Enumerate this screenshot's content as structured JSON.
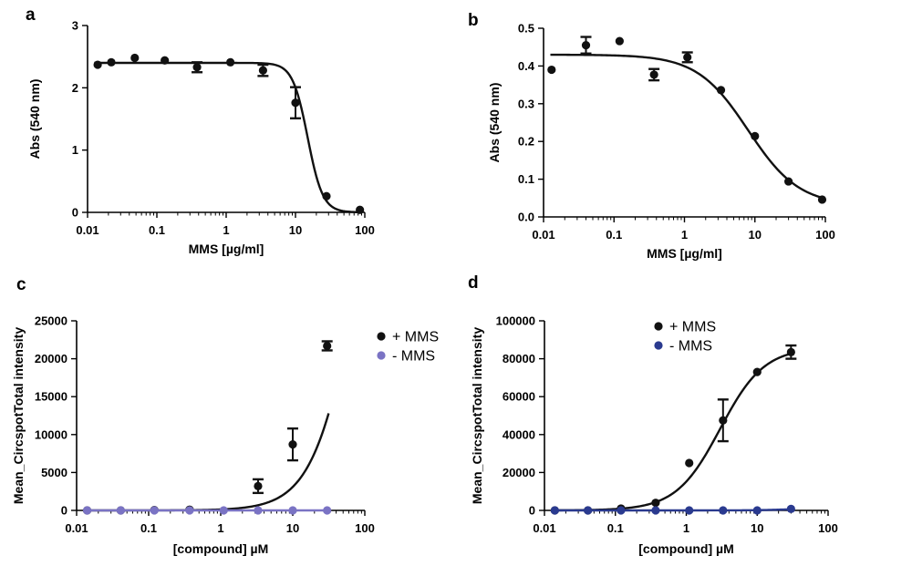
{
  "chart_data": [
    {
      "panel": "a",
      "type": "scatter",
      "x_scale": "log",
      "xlim": [
        0.01,
        100
      ],
      "ylim": [
        0,
        3
      ],
      "x_ticks": [
        "0.01",
        "0.1",
        "1",
        "10",
        "100"
      ],
      "x_tick_values": [
        0.01,
        0.1,
        1,
        10,
        100
      ],
      "y_ticks": [
        "0",
        "1",
        "2",
        "3"
      ],
      "y_tick_values": [
        0,
        1,
        2,
        3
      ],
      "xlabel": "MMS [µg/ml]",
      "ylabel": "Abs  (540 nm)",
      "series": [
        {
          "color": "#111111",
          "points": [
            {
              "x": 0.014,
              "y": 2.37
            },
            {
              "x": 0.022,
              "y": 2.41
            },
            {
              "x": 0.048,
              "y": 2.48
            },
            {
              "x": 0.13,
              "y": 2.44
            },
            {
              "x": 0.38,
              "y": 2.33,
              "err": 0.08
            },
            {
              "x": 1.15,
              "y": 2.41
            },
            {
              "x": 3.4,
              "y": 2.28,
              "err": 0.09
            },
            {
              "x": 10,
              "y": 1.76,
              "err": 0.25
            },
            {
              "x": 28,
              "y": 0.26
            },
            {
              "x": 85,
              "y": 0.04
            }
          ],
          "fit": {
            "model": "4PL-decreasing",
            "top": 2.4,
            "bottom": 0.0,
            "ec50": 15,
            "hill": 4
          }
        }
      ]
    },
    {
      "panel": "b",
      "type": "scatter",
      "x_scale": "log",
      "xlim": [
        0.01,
        100
      ],
      "ylim": [
        0,
        0.5
      ],
      "x_ticks": [
        "0.01",
        "0.1",
        "1",
        "10",
        "100"
      ],
      "x_tick_values": [
        0.01,
        0.1,
        1,
        10,
        100
      ],
      "y_ticks": [
        "0.0",
        "0.1",
        "0.2",
        "0.3",
        "0.4",
        "0.5"
      ],
      "y_tick_values": [
        0,
        0.1,
        0.2,
        0.3,
        0.4,
        0.5
      ],
      "xlabel": "MMS [µg/ml]",
      "ylabel": "Abs  (540 nm)",
      "series": [
        {
          "color": "#111111",
          "points": [
            {
              "x": 0.013,
              "y": 0.39
            },
            {
              "x": 0.04,
              "y": 0.455,
              "err": 0.022
            },
            {
              "x": 0.12,
              "y": 0.466
            },
            {
              "x": 0.37,
              "y": 0.377,
              "err": 0.015
            },
            {
              "x": 1.1,
              "y": 0.423,
              "err": 0.013
            },
            {
              "x": 3.3,
              "y": 0.336
            },
            {
              "x": 10,
              "y": 0.214
            },
            {
              "x": 30,
              "y": 0.094
            },
            {
              "x": 90,
              "y": 0.046
            }
          ],
          "fit": {
            "model": "4PL-decreasing",
            "top": 0.43,
            "bottom": 0.03,
            "ec50": 8,
            "hill": 1.2
          }
        }
      ]
    },
    {
      "panel": "c",
      "type": "scatter",
      "x_scale": "log",
      "xlim": [
        0.01,
        100
      ],
      "ylim": [
        0,
        25000
      ],
      "x_ticks": [
        "0.01",
        "0.1",
        "1",
        "10",
        "100"
      ],
      "x_tick_values": [
        0.01,
        0.1,
        1,
        10,
        100
      ],
      "y_ticks": [
        "0",
        "5000",
        "10000",
        "15000",
        "20000",
        "25000"
      ],
      "y_tick_values": [
        0,
        5000,
        10000,
        15000,
        20000,
        25000
      ],
      "xlabel": "[compound] µM",
      "ylabel": "Mean_CircspotTotal intensity",
      "legend": [
        {
          "label": "+ MMS",
          "color": "#111111"
        },
        {
          "label": "- MMS",
          "color": "#7a73c4"
        }
      ],
      "series": [
        {
          "name": "+ MMS",
          "color": "#111111",
          "points": [
            {
              "x": 0.014,
              "y": 0
            },
            {
              "x": 0.041,
              "y": 0
            },
            {
              "x": 0.12,
              "y": 50
            },
            {
              "x": 0.37,
              "y": 100
            },
            {
              "x": 3.3,
              "y": 3200,
              "err": 900
            },
            {
              "x": 10,
              "y": 8700,
              "err": 2100
            },
            {
              "x": 30,
              "y": 21700,
              "err": 600
            }
          ],
          "fit": {
            "model": "4PL-increasing",
            "top": 60000,
            "bottom": 0,
            "ec50": 80,
            "hill": 1.4
          }
        },
        {
          "name": "- MMS",
          "color": "#7a73c4",
          "points": [
            {
              "x": 0.014,
              "y": 0
            },
            {
              "x": 0.041,
              "y": 0
            },
            {
              "x": 0.12,
              "y": 0
            },
            {
              "x": 0.37,
              "y": 0
            },
            {
              "x": 1.1,
              "y": 0
            },
            {
              "x": 3.3,
              "y": 0
            },
            {
              "x": 10,
              "y": 0
            },
            {
              "x": 30,
              "y": 0
            }
          ],
          "fit": {
            "model": "flat",
            "value": 0
          }
        }
      ]
    },
    {
      "panel": "d",
      "type": "scatter",
      "x_scale": "log",
      "xlim": [
        0.01,
        100
      ],
      "ylim": [
        0,
        100000
      ],
      "x_ticks": [
        "0.01",
        "0.1",
        "1",
        "10",
        "100"
      ],
      "x_tick_values": [
        0.01,
        0.1,
        1,
        10,
        100
      ],
      "y_ticks": [
        "0",
        "20000",
        "40000",
        "60000",
        "80000",
        "100000"
      ],
      "y_tick_values": [
        0,
        20000,
        40000,
        60000,
        80000,
        100000
      ],
      "xlabel": "[compound] µM",
      "ylabel": "Mean_CircspotTotal intensity",
      "legend": [
        {
          "label": "+ MMS",
          "color": "#111111"
        },
        {
          "label": "- MMS",
          "color": "#2a3a8f"
        }
      ],
      "series": [
        {
          "name": "+ MMS",
          "color": "#111111",
          "points": [
            {
              "x": 0.014,
              "y": 0
            },
            {
              "x": 0.041,
              "y": 0
            },
            {
              "x": 0.12,
              "y": 1000
            },
            {
              "x": 0.37,
              "y": 4000
            },
            {
              "x": 1.1,
              "y": 25000
            },
            {
              "x": 3.3,
              "y": 47500,
              "err": 11000
            },
            {
              "x": 10,
              "y": 73000
            },
            {
              "x": 30,
              "y": 83500,
              "err": 3500
            }
          ],
          "fit": {
            "model": "4PL-increasing",
            "top": 86000,
            "bottom": 0,
            "ec50": 3,
            "hill": 1.4
          }
        },
        {
          "name": "- MMS",
          "color": "#2a3a8f",
          "points": [
            {
              "x": 0.014,
              "y": 0
            },
            {
              "x": 0.041,
              "y": 0
            },
            {
              "x": 0.12,
              "y": 0
            },
            {
              "x": 0.37,
              "y": 0
            },
            {
              "x": 1.1,
              "y": 0
            },
            {
              "x": 3.3,
              "y": 0
            },
            {
              "x": 10,
              "y": 0
            },
            {
              "x": 30,
              "y": 800
            }
          ],
          "fit": {
            "model": "4PL-increasing",
            "top": 1000,
            "bottom": 0,
            "ec50": 25,
            "hill": 2
          }
        }
      ]
    }
  ]
}
